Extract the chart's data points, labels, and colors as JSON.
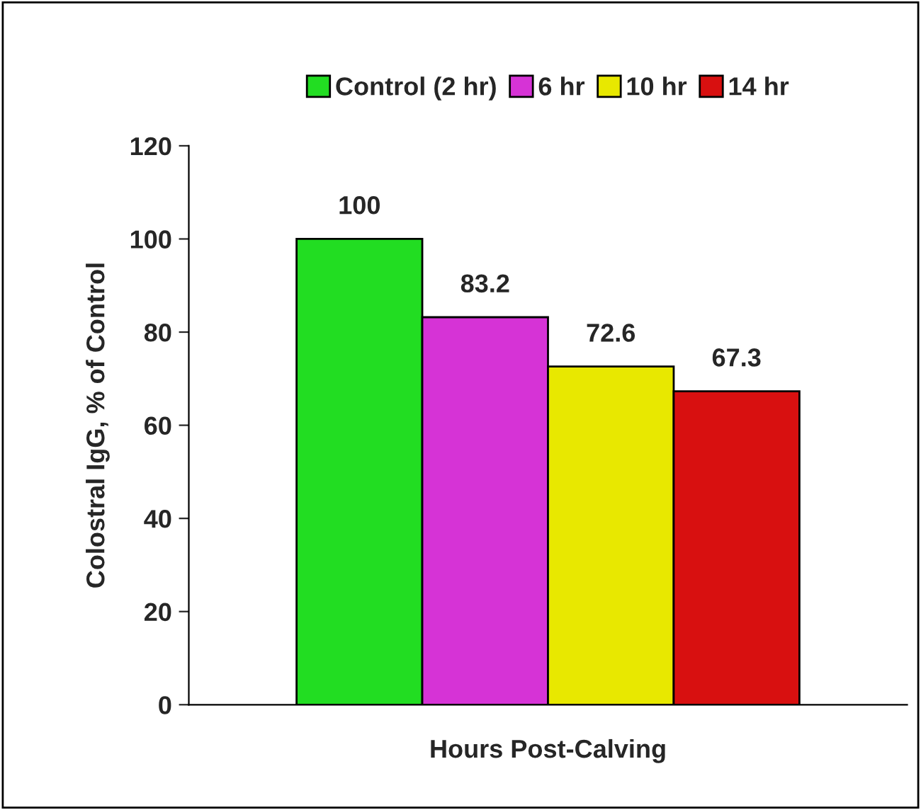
{
  "chart_data": {
    "type": "bar",
    "xlabel": "Hours Post-Calving",
    "ylabel": "Colostral IgG, % of Control",
    "categories": [
      null
    ],
    "series": [
      {
        "name": "Control (2 hr)",
        "color": "#22dd22",
        "values": [
          100
        ]
      },
      {
        "name": "6 hr",
        "color": "#d633d6",
        "values": [
          83.2
        ]
      },
      {
        "name": "10 hr",
        "color": "#e8e800",
        "values": [
          72.6
        ]
      },
      {
        "name": "14 hr",
        "color": "#d81010",
        "values": [
          67.3
        ]
      }
    ],
    "ylim": [
      0,
      120
    ],
    "yticks": [
      0,
      20,
      40,
      60,
      80,
      100,
      120
    ],
    "data_labels": true,
    "legend": "top",
    "grid": false
  }
}
